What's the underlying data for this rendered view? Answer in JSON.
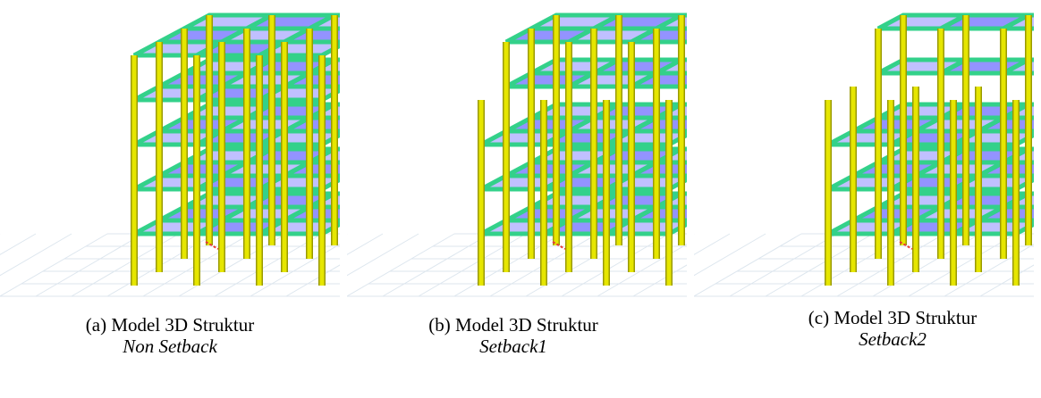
{
  "panels": [
    {
      "id": "a",
      "label": "(a)  Model 3D Struktur",
      "sub": "Non Setback",
      "setback_bays": 0
    },
    {
      "id": "b",
      "label": "(b)  Model 3D Struktur",
      "sub": "Setback1",
      "setback_bays": 1
    },
    {
      "id": "c",
      "label": "(c)  Model 3D Struktur",
      "sub": "Setback2",
      "setback_bays": 2
    }
  ],
  "colors": {
    "column": "#e6e600",
    "column_edge": "#9a9a00",
    "beam": "#33d18a",
    "beam_edge": "#1f8c55",
    "slab": "#3b3bff",
    "slab_light": "#8c8cff",
    "grid": "#dde6ee",
    "origin": "#e83a3a"
  }
}
